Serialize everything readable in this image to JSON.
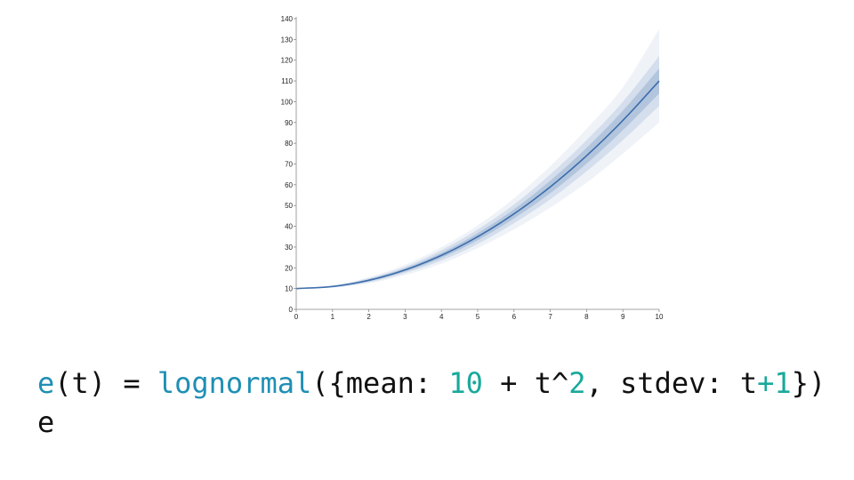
{
  "chart_data": {
    "type": "area",
    "title": "",
    "xlabel": "",
    "ylabel": "",
    "xlim": [
      0,
      10
    ],
    "ylim": [
      0,
      140
    ],
    "x_ticks": [
      0,
      1,
      2,
      3,
      4,
      5,
      6,
      7,
      8,
      9,
      10
    ],
    "y_ticks": [
      0,
      10,
      20,
      30,
      40,
      50,
      60,
      70,
      80,
      90,
      100,
      110,
      120,
      130,
      140
    ],
    "grid": false,
    "series": [
      {
        "x": [
          0,
          1,
          2,
          3,
          4,
          5,
          6,
          7,
          8,
          9,
          10
        ],
        "median": [
          10,
          11,
          14,
          19,
          26,
          35,
          46,
          59,
          74,
          91,
          110
        ],
        "bands": [
          {
            "lower": [
              10,
              10.5,
              12.5,
              16.5,
              22,
              29.5,
              38.5,
              49,
              61,
              75,
              90
            ],
            "upper": [
              10,
              11.5,
              15.5,
              21.5,
              30,
              40.5,
              53.5,
              69,
              87,
              107,
              135
            ]
          },
          {
            "lower": [
              10,
              10.6,
              13,
              17.5,
              23.5,
              31.5,
              41.5,
              53,
              66.5,
              81.5,
              98
            ],
            "upper": [
              10,
              11.4,
              15,
              20.5,
              28.5,
              38.5,
              50.5,
              65,
              81.5,
              100,
              122
            ]
          },
          {
            "lower": [
              10,
              10.8,
              13.5,
              18.2,
              24.8,
              33.3,
              43.8,
              56,
              70.2,
              86.3,
              104
            ],
            "upper": [
              10,
              11.2,
              14.5,
              19.8,
              27.2,
              36.7,
              48.2,
              62,
              77.8,
              95.7,
              116
            ]
          }
        ],
        "color": "#2f63a6"
      }
    ]
  },
  "code": {
    "line1": {
      "fn_e": "e",
      "paren_t": "(t) = ",
      "fn_lognormal": "lognormal",
      "args_open": "({mean: ",
      "num_10": "10",
      "plus_t_pow": " + t^",
      "num_2": "2",
      "stdev_part": ", stdev: t",
      "num_plus1": "+1",
      "close": "})"
    },
    "line2": "e"
  },
  "colors": {
    "fn": "#1f8fb4",
    "num": "#19a99b",
    "band": "#2f63a6"
  }
}
